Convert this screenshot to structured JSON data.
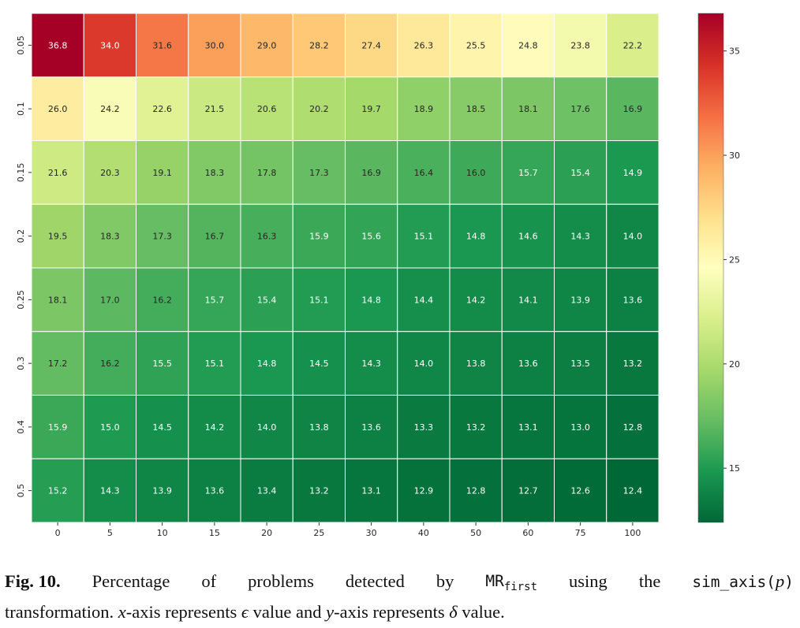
{
  "chart_data": {
    "type": "heatmap",
    "title": "",
    "xlabel": "",
    "ylabel": "",
    "x_categories": [
      "0",
      "5",
      "10",
      "15",
      "20",
      "25",
      "30",
      "40",
      "50",
      "60",
      "75",
      "100"
    ],
    "y_categories": [
      "0.05",
      "0.1",
      "0.15",
      "0.2",
      "0.25",
      "0.3",
      "0.4",
      "0.5"
    ],
    "values": [
      [
        36.8,
        34.0,
        31.6,
        30.0,
        29.0,
        28.2,
        27.4,
        26.3,
        25.5,
        24.8,
        23.8,
        22.2
      ],
      [
        26.0,
        24.2,
        22.6,
        21.5,
        20.6,
        20.2,
        19.7,
        18.9,
        18.5,
        18.1,
        17.6,
        16.9
      ],
      [
        21.6,
        20.3,
        19.1,
        18.3,
        17.8,
        17.3,
        16.9,
        16.4,
        16.0,
        15.7,
        15.4,
        14.9
      ],
      [
        19.5,
        18.3,
        17.3,
        16.7,
        16.3,
        15.9,
        15.6,
        15.1,
        14.8,
        14.6,
        14.3,
        14.0
      ],
      [
        18.1,
        17.0,
        16.2,
        15.7,
        15.4,
        15.1,
        14.8,
        14.4,
        14.2,
        14.1,
        13.9,
        13.6
      ],
      [
        17.2,
        16.2,
        15.5,
        15.1,
        14.8,
        14.5,
        14.3,
        14.0,
        13.8,
        13.6,
        13.5,
        13.2
      ],
      [
        15.9,
        15.0,
        14.5,
        14.2,
        14.0,
        13.8,
        13.6,
        13.3,
        13.2,
        13.1,
        13.0,
        12.8
      ],
      [
        15.2,
        14.3,
        13.9,
        13.6,
        13.4,
        13.2,
        13.1,
        12.9,
        12.8,
        12.7,
        12.6,
        12.4
      ]
    ],
    "colorscale": "RdYlGn_r",
    "color_range": [
      12.4,
      36.8
    ],
    "colorbar_ticks": [
      15,
      20,
      25,
      30,
      35
    ],
    "grid": true,
    "legend": "colorbar-right"
  },
  "caption": {
    "label": "Fig. 10.",
    "t1": "Percentage",
    "t2": "of",
    "t3": "problems",
    "t4": "detected",
    "t5": "by",
    "mr_base": "MR",
    "mr_sub": "first",
    "t6": "using",
    "t7": "the",
    "func_name": "sim_axis(",
    "func_arg": "p",
    "func_close": ")",
    "t8": "transformation.",
    "x_sym": "x",
    "t9": "-axis represents",
    "eps": "ϵ",
    "t10": "value and",
    "y_sym": "y",
    "t11": "-axis represents",
    "delta": "δ",
    "t12": "value."
  }
}
